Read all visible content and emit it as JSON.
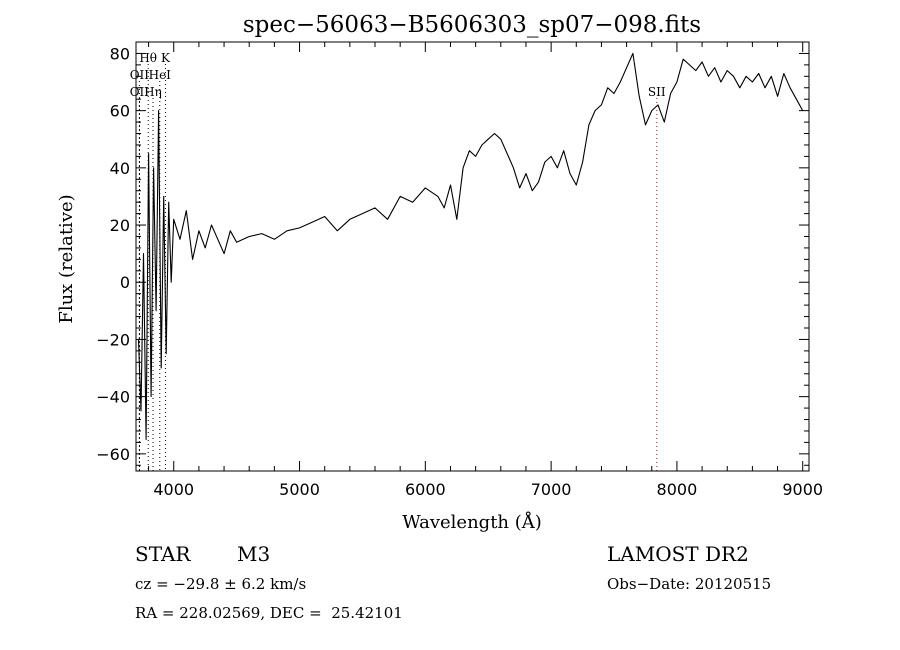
{
  "chart_data": {
    "type": "line",
    "title": "spec−56063−B5606303_sp07−098.fits",
    "xlabel": "Wavelength (Å)",
    "ylabel": "Flux (relative)",
    "xlim": [
      3700,
      9050
    ],
    "ylim": [
      -66,
      84
    ],
    "x_ticks": [
      4000,
      5000,
      6000,
      7000,
      8000,
      9000
    ],
    "x_tick_labels": [
      "4000",
      "5000",
      "6000",
      "7000",
      "8000",
      "9000"
    ],
    "y_ticks": [
      -60,
      -40,
      -20,
      0,
      20,
      40,
      60,
      80
    ],
    "y_tick_labels": [
      "−60",
      "−40",
      "−20",
      "0",
      "20",
      "40",
      "60",
      "80"
    ],
    "grid": false,
    "series": [
      {
        "x": [
          3720,
          3740,
          3760,
          3780,
          3800,
          3820,
          3840,
          3860,
          3880,
          3900,
          3920,
          3940,
          3960,
          3980,
          4000,
          4050,
          4100,
          4150,
          4200,
          4250,
          4300,
          4350,
          4400,
          4450,
          4500,
          4600,
          4700,
          4800,
          4900,
          5000,
          5100,
          5200,
          5300,
          5400,
          5500,
          5600,
          5700,
          5800,
          5900,
          6000,
          6100,
          6150,
          6200,
          6250,
          6300,
          6350,
          6400,
          6450,
          6500,
          6550,
          6600,
          6650,
          6700,
          6750,
          6800,
          6850,
          6900,
          6950,
          7000,
          7050,
          7100,
          7150,
          7200,
          7250,
          7300,
          7350,
          7400,
          7450,
          7500,
          7550,
          7600,
          7650,
          7700,
          7750,
          7800,
          7850,
          7900,
          7950,
          8000,
          8050,
          8100,
          8150,
          8200,
          8250,
          8300,
          8350,
          8400,
          8450,
          8500,
          8550,
          8600,
          8650,
          8700,
          8750,
          8800,
          8850,
          8900,
          8950,
          9000
        ],
        "y": [
          -20,
          -45,
          10,
          -55,
          45,
          -40,
          40,
          -10,
          60,
          -30,
          30,
          -25,
          28,
          0,
          22,
          15,
          25,
          8,
          18,
          12,
          20,
          15,
          10,
          18,
          14,
          16,
          17,
          15,
          18,
          19,
          21,
          23,
          18,
          22,
          24,
          26,
          22,
          30,
          28,
          33,
          30,
          26,
          34,
          22,
          40,
          46,
          44,
          48,
          50,
          52,
          50,
          45,
          40,
          33,
          38,
          32,
          35,
          42,
          44,
          40,
          46,
          38,
          34,
          42,
          55,
          60,
          62,
          68,
          66,
          70,
          75,
          80,
          65,
          55,
          60,
          62,
          56,
          66,
          70,
          78,
          76,
          74,
          77,
          72,
          75,
          70,
          74,
          72,
          68,
          72,
          70,
          73,
          68,
          72,
          65,
          73,
          68,
          64,
          60
        ]
      }
    ],
    "line_markers": [
      {
        "label": "Hθ",
        "x": 3797,
        "row": 0,
        "color": "#000000"
      },
      {
        "label": "K",
        "x": 3934,
        "row": 0,
        "color": "#000000"
      },
      {
        "label": "OII",
        "x": 3727,
        "row": 1,
        "color": "#000000"
      },
      {
        "label": "HeI",
        "x": 3889,
        "row": 1,
        "color": "#000000"
      },
      {
        "label": "OII",
        "x": 3727,
        "row": 2,
        "color": "#000000"
      },
      {
        "label": "Hη",
        "x": 3835,
        "row": 2,
        "color": "#000000"
      },
      {
        "label": "SII",
        "x": 7840,
        "row": 2,
        "color": "#dd0000"
      }
    ]
  },
  "info": {
    "object_class": "STAR",
    "subclass": "M3",
    "survey": "LAMOST DR2",
    "cz": "cz = −29.8 ± 6.2 km/s",
    "obs_date": "Obs−Date: 20120515",
    "coords": "RA = 228.02569, DEC =  25.42101"
  }
}
